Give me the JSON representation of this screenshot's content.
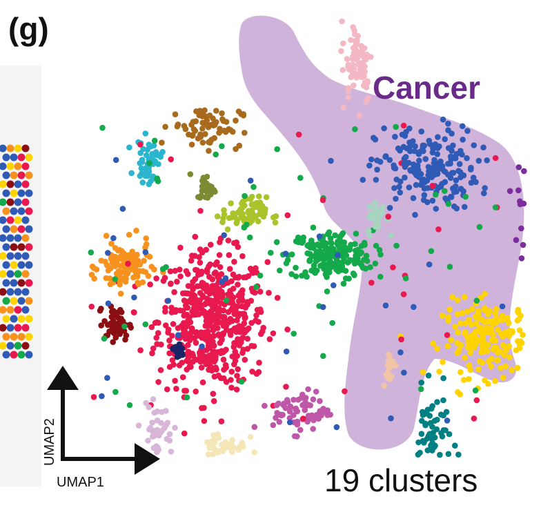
{
  "panel": {
    "label": "(g)"
  },
  "annotations": {
    "cancer": "Cancer",
    "clusters": "19 clusters"
  },
  "axes": {
    "x": "UMAP1",
    "y": "UMAP2"
  },
  "colors": {
    "cancer_region": "#c8a6d4",
    "cancer_text": "#6a2a8a",
    "tissue_left": "#e8e8e8"
  },
  "chart_data": {
    "type": "scatter",
    "xlabel": "UMAP1",
    "ylabel": "UMAP2",
    "cluster_count": 19,
    "clusters": [
      {
        "color": "#e8194e",
        "n": 520,
        "center": [
          -2.2,
          -0.8
        ],
        "spread": [
          1.7,
          1.6
        ]
      },
      {
        "color": "#14a94a",
        "n": 200,
        "center": [
          1.9,
          0.9
        ],
        "spread": [
          1.3,
          0.6
        ]
      },
      {
        "color": "#2f5ab5",
        "n": 180,
        "center": [
          5.2,
          3.2
        ],
        "spread": [
          1.6,
          1.0
        ]
      },
      {
        "color": "#7a2d9b",
        "n": 110,
        "center": [
          8.9,
          2.3
        ],
        "spread": [
          0.5,
          1.4
        ]
      },
      {
        "color": "#ffd400",
        "n": 190,
        "center": [
          7.4,
          -1.3
        ],
        "spread": [
          1.5,
          0.9
        ]
      },
      {
        "color": "#008083",
        "n": 70,
        "center": [
          5.4,
          -3.9
        ],
        "spread": [
          0.6,
          1.1
        ]
      },
      {
        "color": "#f7921e",
        "n": 110,
        "center": [
          -5.2,
          0.6
        ],
        "spread": [
          0.8,
          0.6
        ]
      },
      {
        "color": "#2bb5cf",
        "n": 50,
        "center": [
          -4.4,
          3.4
        ],
        "spread": [
          0.4,
          0.5
        ]
      },
      {
        "color": "#a86a1c",
        "n": 70,
        "center": [
          -2.4,
          4.3
        ],
        "spread": [
          1.1,
          0.5
        ]
      },
      {
        "color": "#a8c42a",
        "n": 70,
        "center": [
          -1.1,
          2.0
        ],
        "spread": [
          0.7,
          0.4
        ]
      },
      {
        "color": "#8b0f12",
        "n": 60,
        "center": [
          -5.5,
          -0.9
        ],
        "spread": [
          0.4,
          0.4
        ]
      },
      {
        "color": "#bf57a8",
        "n": 70,
        "center": [
          0.9,
          -3.2
        ],
        "spread": [
          0.9,
          0.5
        ]
      },
      {
        "color": "#f4b8c4",
        "n": 70,
        "center": [
          2.8,
          6.0
        ],
        "spread": [
          0.5,
          1.0
        ]
      },
      {
        "color": "#a8d5c0",
        "n": 30,
        "center": [
          3.5,
          1.9
        ],
        "spread": [
          0.3,
          0.4
        ]
      },
      {
        "color": "#7b8b32",
        "n": 30,
        "center": [
          -2.4,
          2.7
        ],
        "spread": [
          0.3,
          0.3
        ]
      },
      {
        "color": "#f5e6b8",
        "n": 40,
        "center": [
          -1.8,
          -4.1
        ],
        "spread": [
          0.7,
          0.4
        ]
      },
      {
        "color": "#d8b6d8",
        "n": 40,
        "center": [
          -4.1,
          -3.7
        ],
        "spread": [
          0.5,
          0.6
        ]
      },
      {
        "color": "#1a2466",
        "n": 20,
        "center": [
          -3.4,
          -1.6
        ],
        "spread": [
          0.2,
          0.2
        ]
      },
      {
        "color": "#f2c4a6",
        "n": 20,
        "center": [
          3.9,
          -2.0
        ],
        "spread": [
          0.2,
          0.4
        ]
      }
    ]
  }
}
